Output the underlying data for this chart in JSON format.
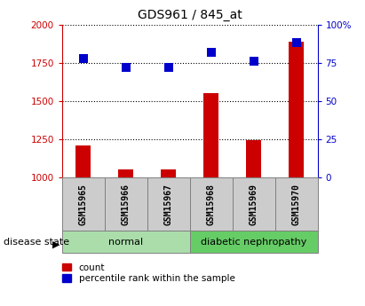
{
  "title": "GDS961 / 845_at",
  "samples": [
    "GSM15965",
    "GSM15966",
    "GSM15967",
    "GSM15968",
    "GSM15969",
    "GSM15970"
  ],
  "counts": [
    1210,
    1055,
    1055,
    1550,
    1245,
    1890
  ],
  "percentiles": [
    78,
    72,
    72,
    82,
    76,
    88
  ],
  "ylim_left": [
    1000,
    2000
  ],
  "ylim_right": [
    0,
    100
  ],
  "yticks_left": [
    1000,
    1250,
    1500,
    1750,
    2000
  ],
  "yticks_right": [
    0,
    25,
    50,
    75,
    100
  ],
  "ytick_labels_left": [
    "1000",
    "1250",
    "1500",
    "1750",
    "2000"
  ],
  "ytick_labels_right": [
    "0",
    "25",
    "50",
    "75",
    "100%"
  ],
  "groups": [
    {
      "label": "normal",
      "indices": [
        0,
        1,
        2
      ],
      "color": "#aaddaa"
    },
    {
      "label": "diabetic nephropathy",
      "indices": [
        3,
        4,
        5
      ],
      "color": "#66cc66"
    }
  ],
  "bar_color": "#cc0000",
  "dot_color": "#0000cc",
  "bar_width": 0.35,
  "dot_size": 50,
  "grid_color": "#000000",
  "background_color": "#ffffff",
  "tick_box_color": "#cccccc",
  "left_axis_color": "#cc0000",
  "right_axis_color": "#0000cc",
  "disease_state_label": "disease state",
  "legend_count_label": "count",
  "legend_percentile_label": "percentile rank within the sample"
}
